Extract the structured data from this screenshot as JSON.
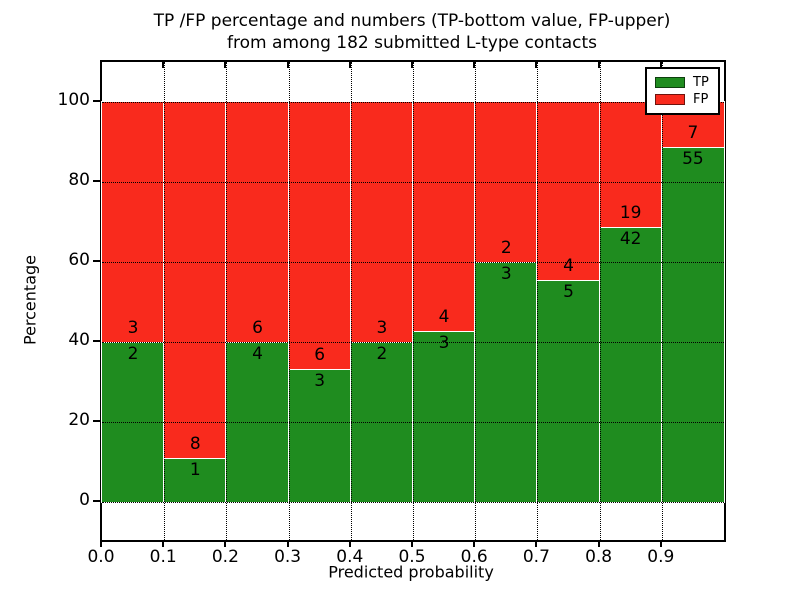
{
  "chart_data": {
    "type": "bar",
    "subtype": "stacked-percentage",
    "title_line1": "TP /FP percentage and numbers (TP-bottom value, FP-upper)",
    "title_line2": "from among 182 submitted L-type contacts",
    "xlabel": "Predicted probability",
    "ylabel": "Percentage",
    "x_tick_labels": [
      "0.0",
      "0.1",
      "0.2",
      "0.3",
      "0.4",
      "0.5",
      "0.6",
      "0.7",
      "0.8",
      "0.9"
    ],
    "y_tick_values": [
      0,
      20,
      40,
      60,
      80,
      100
    ],
    "xlim": [
      0.0,
      1.0
    ],
    "ylim": [
      -9.5,
      110
    ],
    "grid": "dotted-on",
    "legend_position": "upper-right",
    "bin_width": 0.1,
    "categories": [
      "0.0-0.1",
      "0.1-0.2",
      "0.2-0.3",
      "0.3-0.4",
      "0.4-0.5",
      "0.5-0.6",
      "0.6-0.7",
      "0.7-0.8",
      "0.8-0.9",
      "0.9-1.0"
    ],
    "series": [
      {
        "name": "TP",
        "color": "#1f8c1f",
        "values": [
          2,
          1,
          4,
          3,
          2,
          3,
          3,
          5,
          42,
          55
        ]
      },
      {
        "name": "FP",
        "color": "#f92a1d",
        "values": [
          3,
          8,
          6,
          6,
          3,
          4,
          2,
          4,
          19,
          7
        ]
      }
    ],
    "total_contacts": "182",
    "bar_edge_color": "#ffffff"
  },
  "legend": {
    "tp_label": "TP",
    "fp_label": "FP"
  }
}
